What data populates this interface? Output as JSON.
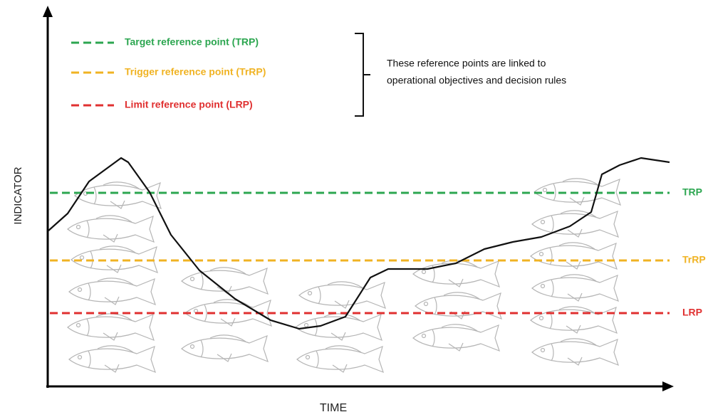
{
  "axes": {
    "y_label": "INDICATOR",
    "x_label": "TIME"
  },
  "legend": [
    {
      "label": "Target reference point (TRP)",
      "color": "#2ca650"
    },
    {
      "label": "Trigger reference point (TrRP)",
      "color": "#f0b323"
    },
    {
      "label": "Limit reference point (LRP)",
      "color": "#e03030"
    }
  ],
  "note": [
    "These reference points are linked to",
    "operational objectives and decision rules"
  ],
  "line_labels": [
    "TRP",
    "TrRP",
    "LRP"
  ]
}
